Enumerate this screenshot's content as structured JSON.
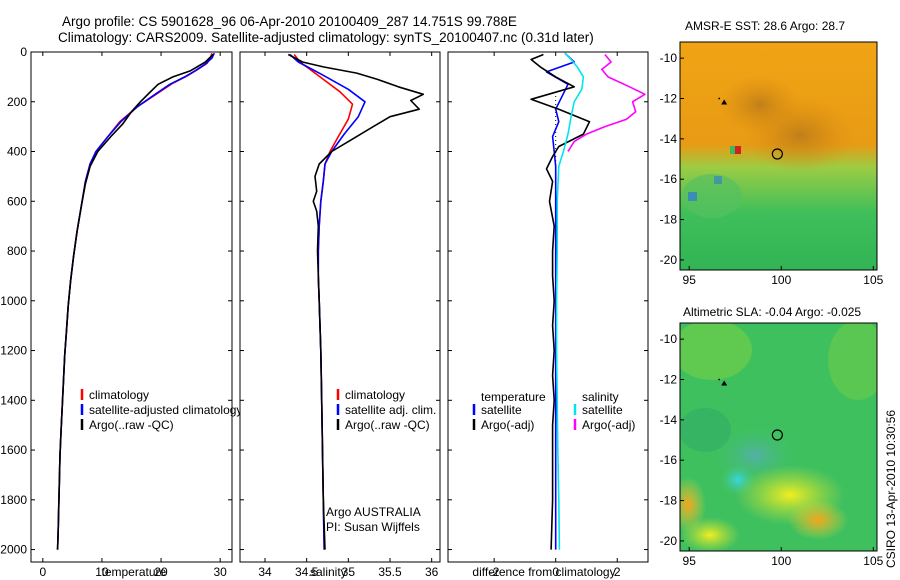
{
  "header": {
    "line1": "Argo profile: CS 5901628_96 06-Apr-2010 20100409_287 14.751S 99.788E",
    "line2": "Climatology: CARS2009. Satellite-adjusted climatology: synTS_20100407.nc (0.31d later)"
  },
  "credit": "CSIRO 13-Apr-2010 10:30:56",
  "colors": {
    "climatology": "#ff0000",
    "satellite": "#0000ff",
    "argo": "#000000",
    "sat_salinity": "#00e5ee",
    "argo_salinity": "#ff00ff"
  },
  "chart_data": [
    {
      "id": "temperature",
      "type": "line",
      "xlabel": "temperature",
      "ylabel": "",
      "xlim": [
        -2,
        32
      ],
      "ylim": [
        2050,
        0
      ],
      "xticks": [
        0,
        10,
        20,
        30
      ],
      "yticks": [
        0,
        200,
        400,
        600,
        800,
        1000,
        1200,
        1400,
        1600,
        1800,
        2000
      ],
      "legend": [
        "climatology",
        "satellite-adjusted climatology",
        "Argo(..raw -QC)"
      ],
      "series": [
        {
          "name": "climatology",
          "color": "#ff0000",
          "points": [
            [
              28.6,
              5
            ],
            [
              28.4,
              20
            ],
            [
              27.8,
              45
            ],
            [
              26.2,
              70
            ],
            [
              24.5,
              95
            ],
            [
              22,
              125
            ],
            [
              19.5,
              165
            ],
            [
              16,
              220
            ],
            [
              13,
              280
            ],
            [
              11,
              340
            ],
            [
              9,
              400
            ],
            [
              8,
              450
            ],
            [
              7.2,
              520
            ],
            [
              6.5,
              620
            ],
            [
              5.8,
              720
            ],
            [
              5.2,
              820
            ],
            [
              4.7,
              920
            ],
            [
              4.3,
              1020
            ],
            [
              4,
              1120
            ],
            [
              3.7,
              1220
            ],
            [
              3.5,
              1320
            ],
            [
              3.3,
              1420
            ],
            [
              3.1,
              1520
            ],
            [
              2.9,
              1620
            ],
            [
              2.8,
              1720
            ],
            [
              2.7,
              1820
            ],
            [
              2.6,
              1920
            ],
            [
              2.5,
              2000
            ]
          ]
        },
        {
          "name": "satellite-adjusted climatology",
          "color": "#0000ff",
          "points": [
            [
              29,
              5
            ],
            [
              28.6,
              25
            ],
            [
              27.4,
              50
            ],
            [
              25.8,
              75
            ],
            [
              24,
              100
            ],
            [
              21.5,
              130
            ],
            [
              19,
              170
            ],
            [
              16,
              220
            ],
            [
              13.2,
              280
            ],
            [
              11,
              340
            ],
            [
              9,
              400
            ],
            [
              8,
              450
            ],
            [
              7.2,
              520
            ],
            [
              6.5,
              620
            ],
            [
              5.8,
              720
            ],
            [
              5.2,
              820
            ],
            [
              4.7,
              920
            ],
            [
              4.3,
              1020
            ],
            [
              4,
              1120
            ],
            [
              3.7,
              1220
            ],
            [
              3.5,
              1320
            ],
            [
              3.3,
              1420
            ],
            [
              3.1,
              1520
            ],
            [
              2.9,
              1620
            ],
            [
              2.8,
              1720
            ],
            [
              2.7,
              1820
            ],
            [
              2.6,
              1920
            ],
            [
              2.5,
              2000
            ]
          ]
        },
        {
          "name": "Argo(..raw -QC)",
          "color": "#000000",
          "points": [
            [
              28.8,
              10
            ],
            [
              27.5,
              40
            ],
            [
              25,
              75
            ],
            [
              22,
              100
            ],
            [
              19.5,
              130
            ],
            [
              18,
              165
            ],
            [
              16.5,
              200
            ],
            [
              15,
              240
            ],
            [
              13.5,
              290
            ],
            [
              11.5,
              340
            ],
            [
              9.3,
              400
            ],
            [
              8,
              460
            ],
            [
              7.2,
              530
            ],
            [
              6.5,
              620
            ],
            [
              5.8,
              720
            ],
            [
              5.2,
              820
            ],
            [
              4.7,
              920
            ],
            [
              4.3,
              1020
            ],
            [
              4,
              1120
            ],
            [
              3.7,
              1220
            ],
            [
              3.5,
              1320
            ],
            [
              3.3,
              1420
            ],
            [
              3.1,
              1520
            ],
            [
              2.9,
              1620
            ],
            [
              2.8,
              1720
            ],
            [
              2.7,
              1820
            ],
            [
              2.6,
              1920
            ],
            [
              2.5,
              2000
            ]
          ]
        }
      ]
    },
    {
      "id": "salinity",
      "type": "line",
      "xlabel": "salinity",
      "ylabel": "",
      "xlim": [
        33.7,
        36.1
      ],
      "ylim": [
        2050,
        0
      ],
      "xticks": [
        34,
        34.5,
        35,
        35.5,
        36
      ],
      "legend": [
        "climatology",
        "satellite adj. clim.",
        "Argo(..raw -QC)"
      ],
      "annotations": [
        "Argo AUSTRALIA",
        "PI: Susan Wijffels"
      ],
      "series": [
        {
          "name": "climatology",
          "color": "#ff0000",
          "points": [
            [
              34.35,
              10
            ],
            [
              34.42,
              40
            ],
            [
              34.62,
              90
            ],
            [
              34.9,
              160
            ],
            [
              35.05,
              210
            ],
            [
              35.0,
              270
            ],
            [
              34.88,
              340
            ],
            [
              34.78,
              400
            ],
            [
              34.72,
              450
            ],
            [
              34.7,
              520
            ],
            [
              34.67,
              600
            ],
            [
              34.65,
              700
            ],
            [
              34.64,
              800
            ],
            [
              34.64,
              900
            ],
            [
              34.65,
              1000
            ],
            [
              34.66,
              1100
            ],
            [
              34.67,
              1200
            ],
            [
              34.68,
              1400
            ],
            [
              34.69,
              1600
            ],
            [
              34.7,
              1800
            ],
            [
              34.71,
              2000
            ]
          ]
        },
        {
          "name": "satellite adj. clim.",
          "color": "#0000ff",
          "points": [
            [
              34.3,
              10
            ],
            [
              34.4,
              40
            ],
            [
              34.68,
              90
            ],
            [
              35.0,
              150
            ],
            [
              35.2,
              200
            ],
            [
              35.12,
              260
            ],
            [
              34.95,
              330
            ],
            [
              34.8,
              400
            ],
            [
              34.72,
              450
            ],
            [
              34.7,
              520
            ],
            [
              34.67,
              600
            ],
            [
              34.65,
              700
            ],
            [
              34.64,
              800
            ],
            [
              34.64,
              900
            ],
            [
              34.65,
              1000
            ],
            [
              34.66,
              1100
            ],
            [
              34.67,
              1200
            ],
            [
              34.68,
              1400
            ],
            [
              34.69,
              1600
            ],
            [
              34.7,
              1800
            ],
            [
              34.71,
              2000
            ]
          ]
        },
        {
          "name": "Argo(..raw -QC)",
          "color": "#000000",
          "points": [
            [
              34.28,
              10
            ],
            [
              34.45,
              40
            ],
            [
              34.7,
              60
            ],
            [
              35.1,
              85
            ],
            [
              35.35,
              110
            ],
            [
              35.6,
              140
            ],
            [
              35.9,
              170
            ],
            [
              35.75,
              195
            ],
            [
              35.85,
              230
            ],
            [
              35.5,
              260
            ],
            [
              35.3,
              300
            ],
            [
              35.05,
              350
            ],
            [
              34.8,
              400
            ],
            [
              34.65,
              450
            ],
            [
              34.6,
              500
            ],
            [
              34.62,
              560
            ],
            [
              34.58,
              600
            ],
            [
              34.62,
              640
            ],
            [
              34.64,
              700
            ],
            [
              34.63,
              800
            ],
            [
              34.64,
              900
            ],
            [
              34.65,
              1000
            ],
            [
              34.66,
              1100
            ],
            [
              34.67,
              1200
            ],
            [
              34.68,
              1400
            ],
            [
              34.69,
              1600
            ],
            [
              34.7,
              1800
            ],
            [
              34.72,
              2000
            ]
          ]
        }
      ]
    },
    {
      "id": "difference",
      "type": "line",
      "xlabel": "difference from climatology",
      "ylabel": "",
      "xlim": [
        -3.5,
        3.0
      ],
      "ylim": [
        2050,
        0
      ],
      "xticks": [
        -2,
        0,
        2
      ],
      "legend_headers": [
        "temperature",
        "salinity"
      ],
      "legend": [
        "satellite",
        "Argo(-adj)",
        "satellite",
        "Argo(-adj)"
      ],
      "series": [
        {
          "name": "satellite",
          "group": "temperature",
          "color": "#0000ff",
          "points": [
            [
              0.3,
              5
            ],
            [
              0.6,
              40
            ],
            [
              -0.3,
              80
            ],
            [
              0.4,
              130
            ],
            [
              0.2,
              180
            ],
            [
              0,
              230
            ],
            [
              0.1,
              280
            ],
            [
              -0.1,
              340
            ],
            [
              -0.05,
              400
            ],
            [
              0,
              460
            ],
            [
              0,
              600
            ],
            [
              0,
              800
            ],
            [
              0,
              1000
            ],
            [
              0,
              1200
            ],
            [
              0,
              1400
            ],
            [
              0,
              1600
            ],
            [
              0,
              1800
            ],
            [
              0,
              2000
            ]
          ]
        },
        {
          "name": "Argo(-adj)",
          "group": "temperature",
          "color": "#000000",
          "points": [
            [
              -0.4,
              10
            ],
            [
              -0.8,
              30
            ],
            [
              -0.5,
              60
            ],
            [
              0,
              100
            ],
            [
              0.6,
              140
            ],
            [
              -0.8,
              190
            ],
            [
              0.1,
              230
            ],
            [
              1.1,
              280
            ],
            [
              0.9,
              330
            ],
            [
              0.1,
              380
            ],
            [
              -0.1,
              420
            ],
            [
              -0.3,
              470
            ],
            [
              -0.1,
              520
            ],
            [
              -0.2,
              600
            ],
            [
              -0.05,
              700
            ],
            [
              -0.1,
              800
            ],
            [
              -0.1,
              900
            ],
            [
              -0.05,
              1000
            ],
            [
              -0.1,
              1100
            ],
            [
              -0.05,
              1200
            ],
            [
              -0.1,
              1300
            ],
            [
              -0.05,
              1400
            ],
            [
              -0.1,
              1500
            ],
            [
              -0.1,
              1600
            ],
            [
              -0.1,
              1800
            ],
            [
              -0.15,
              2000
            ]
          ]
        },
        {
          "name": "satellite",
          "group": "salinity",
          "color": "#00e5ee",
          "points": [
            [
              0.3,
              5
            ],
            [
              0.5,
              30
            ],
            [
              0.7,
              60
            ],
            [
              0.9,
              100
            ],
            [
              0.85,
              150
            ],
            [
              0.6,
              200
            ],
            [
              0.5,
              260
            ],
            [
              0.4,
              330
            ],
            [
              0.25,
              400
            ],
            [
              0.1,
              460
            ],
            [
              0.05,
              600
            ],
            [
              0.05,
              800
            ],
            [
              0.03,
              1000
            ],
            [
              0.03,
              1200
            ],
            [
              0.05,
              1400
            ],
            [
              0.07,
              1600
            ],
            [
              0.1,
              1800
            ],
            [
              0.12,
              2000
            ]
          ]
        },
        {
          "name": "Argo(-adj)",
          "group": "salinity",
          "color": "#ff00ff",
          "points": [
            [
              1.6,
              10
            ],
            [
              1.8,
              40
            ],
            [
              1.5,
              70
            ],
            [
              1.7,
              100
            ],
            [
              2.4,
              140
            ],
            [
              2.9,
              170
            ],
            [
              2.5,
              200
            ],
            [
              2.6,
              240
            ],
            [
              2.3,
              270
            ],
            [
              1.6,
              300
            ],
            [
              1.0,
              330
            ],
            [
              0.6,
              360
            ],
            [
              0.4,
              400
            ]
          ]
        }
      ]
    },
    {
      "id": "sst-map",
      "type": "heatmap",
      "title": "AMSR-E SST: 28.6 Argo: 28.7",
      "xlim": [
        94.5,
        105.2
      ],
      "ylim": [
        -20.5,
        -9.2
      ],
      "xticks": [
        95,
        100,
        105
      ],
      "yticks": [
        -10,
        -12,
        -14,
        -16,
        -18,
        -20
      ],
      "marker": {
        "lon": 99.788,
        "lat": -14.751
      },
      "previous_position": {
        "lon": 96.9,
        "lat": -12.2
      }
    },
    {
      "id": "sla-map",
      "type": "heatmap",
      "title": "Altimetric SLA: -0.04 Argo: -0.025",
      "xlim": [
        94.5,
        105.2
      ],
      "ylim": [
        -20.5,
        -9.2
      ],
      "xticks": [
        95,
        100,
        105
      ],
      "yticks": [
        -10,
        -12,
        -14,
        -16,
        -18,
        -20
      ],
      "marker": {
        "lon": 99.788,
        "lat": -14.751
      },
      "previous_position": {
        "lon": 96.9,
        "lat": -12.2
      }
    }
  ]
}
